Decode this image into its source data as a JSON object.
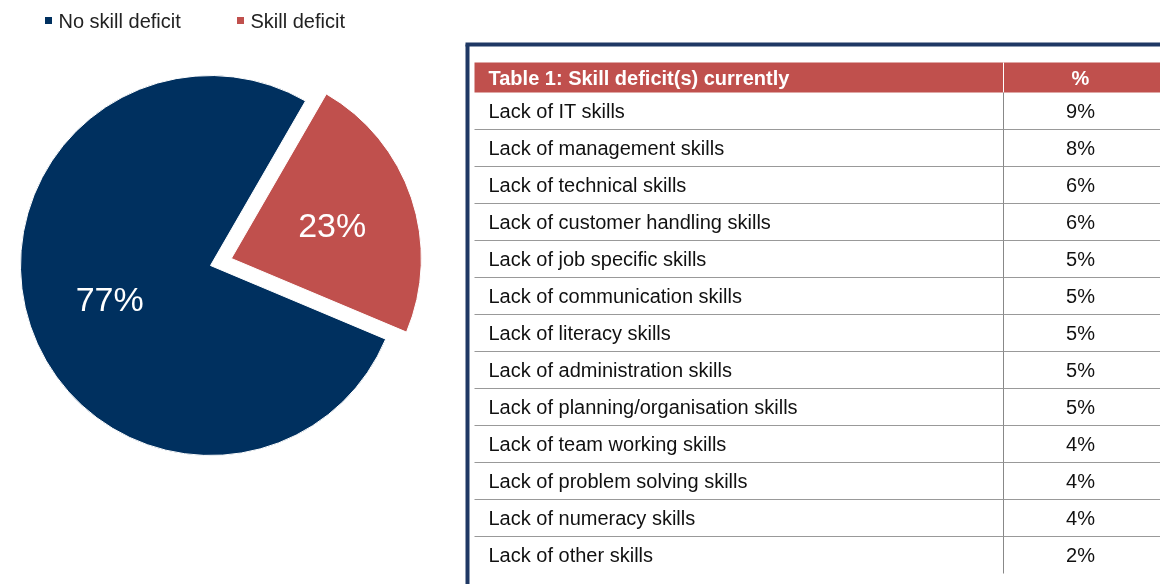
{
  "chart_data": [
    {
      "type": "pie",
      "categories": [
        "No skill deficit",
        "Skill deficit"
      ],
      "values": [
        77,
        23
      ],
      "colors": [
        "#00305f",
        "#c0504d"
      ],
      "value_labels": [
        "77%",
        "23%"
      ],
      "legend": "top left"
    },
    {
      "type": "other",
      "title": "Table 1: Skill deficit(s) currently",
      "annotations": [
        "%"
      ],
      "categories": [
        "Lack of IT skills",
        "Lack of management skills",
        "Lack of technical skills",
        "Lack of customer handling skills",
        "Lack of job specific skills",
        "Lack of communication skills",
        "Lack of literacy skills",
        "Lack of administration skills",
        "Lack of planning/organisation skills",
        "Lack of team working skills",
        "Lack of problem solving skills",
        "Lack of numeracy skills",
        "Lack of other skills"
      ],
      "values": [
        9,
        8,
        6,
        6,
        5,
        5,
        5,
        5,
        5,
        4,
        4,
        4,
        2
      ],
      "value_labels": [
        "9%",
        "8%",
        "6%",
        "6%",
        "5%",
        "5%",
        "5%",
        "5%",
        "5%",
        "4%",
        "4%",
        "4%",
        "2%"
      ],
      "color": "#c0504d"
    }
  ]
}
